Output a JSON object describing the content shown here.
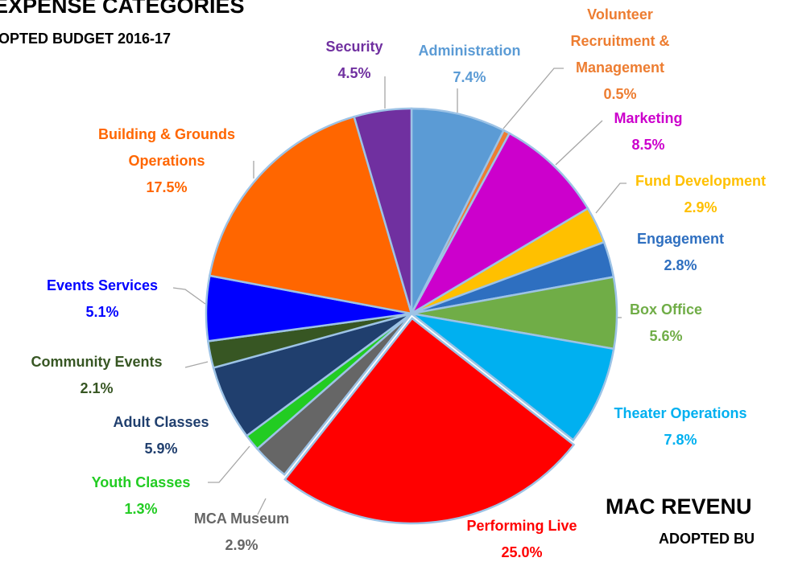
{
  "chart_data": {
    "type": "pie",
    "title": "EXPENSE CATEGORIES",
    "subtitle": "OPTED BUDGET 2016-17",
    "annotations": [
      "MAC REVENU",
      "ADOPTED BU"
    ],
    "categories": [
      "Administration",
      "Volunteer Recruitment & Management",
      "Marketing",
      "Fund Development",
      "Engagement",
      "Box Office",
      "Theater Operations",
      "Performing Live",
      "MCA Museum",
      "Youth Classes",
      "Adult Classes",
      "Community Events",
      "Events Services",
      "Building & Grounds Operations",
      "Security"
    ],
    "values": [
      7.4,
      0.5,
      8.5,
      2.9,
      2.8,
      5.6,
      7.8,
      25.0,
      2.9,
      1.3,
      5.9,
      2.1,
      5.1,
      17.5,
      4.5
    ],
    "value_labels": [
      "7.4%",
      "0.5%",
      "8.5%",
      "2.9%",
      "2.8%",
      "5.6%",
      "7.8%",
      "25.0%",
      "2.9%",
      "1.3%",
      "5.9%",
      "2.1%",
      "5.1%",
      "17.5%",
      "4.5%"
    ],
    "colors": [
      "#5b9bd5",
      "#ed7d31",
      "#cc00cc",
      "#ffc000",
      "#2e6fc0",
      "#70ad47",
      "#00b0f0",
      "#ff0000",
      "#666666",
      "#22cc22",
      "#203f6e",
      "#375623",
      "#0000ff",
      "#ff6600",
      "#7030a0"
    ]
  }
}
